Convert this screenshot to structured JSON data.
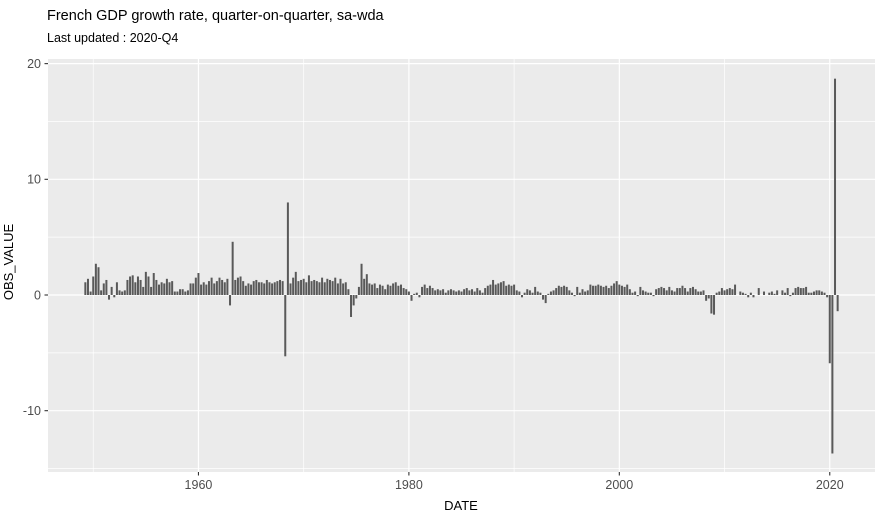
{
  "chart_data": {
    "type": "bar",
    "title": "French GDP growth rate, quarter-on-quarter, sa-wda",
    "subtitle": "Last updated : 2020-Q4",
    "xlabel": "DATE",
    "ylabel": "OBS_VALUE",
    "series_name": "OBS_VALUE",
    "frequency": "quarterly",
    "series_start": "1949-Q2",
    "series_end": "2020-Q4",
    "x_tick_labels": [
      "1960",
      "1980",
      "2000",
      "2020"
    ],
    "x_tick_values": [
      1960,
      1980,
      2000,
      2020
    ],
    "y_tick_labels": [
      "20",
      "10",
      "0",
      "-10"
    ],
    "y_tick_values": [
      20,
      10,
      0,
      -10
    ],
    "xlim": [
      1945.7,
      2024.3
    ],
    "ylim": [
      -15.3,
      20.4
    ],
    "grid": true,
    "legend": "none",
    "colors": {
      "bar": "#595959",
      "panel_bg": "#ebebeb",
      "gridline": "#ffffff",
      "tick_mark": "#333333",
      "tick_text": "#4d4d4d",
      "text": "#000000"
    },
    "values": [
      1.1,
      1.4,
      0.3,
      1.6,
      2.7,
      2.4,
      0.4,
      1.0,
      1.3,
      -0.4,
      0.7,
      -0.2,
      1.1,
      0.4,
      0.3,
      0.4,
      1.3,
      1.6,
      1.7,
      1.1,
      1.6,
      1.3,
      0.7,
      2.0,
      1.6,
      0.7,
      1.9,
      1.3,
      0.9,
      1.1,
      1.0,
      1.4,
      1.1,
      1.2,
      0.3,
      0.3,
      0.5,
      0.5,
      0.3,
      0.4,
      1.0,
      1.0,
      1.5,
      1.9,
      0.9,
      1.1,
      0.9,
      1.2,
      1.5,
      1.0,
      1.2,
      1.5,
      1.3,
      1.1,
      1.4,
      -0.9,
      4.6,
      1.3,
      1.5,
      1.6,
      1.2,
      0.8,
      1.0,
      0.9,
      1.2,
      1.3,
      1.1,
      1.1,
      1.0,
      1.3,
      1.1,
      1.0,
      1.1,
      1.2,
      1.3,
      1.2,
      -5.3,
      8.0,
      1.0,
      1.5,
      2.0,
      1.2,
      1.3,
      1.4,
      1.1,
      1.7,
      1.2,
      1.3,
      1.2,
      1.1,
      1.5,
      1.1,
      1.4,
      1.3,
      1.2,
      1.5,
      1.0,
      1.4,
      1.0,
      1.1,
      0.5,
      -1.9,
      -0.9,
      -0.3,
      0.7,
      2.7,
      1.4,
      1.8,
      1.0,
      0.9,
      1.0,
      0.6,
      0.9,
      0.8,
      0.5,
      0.9,
      0.8,
      1.0,
      1.1,
      0.8,
      0.9,
      0.6,
      0.5,
      0.3,
      -0.5,
      0.1,
      0.2,
      -0.2,
      0.7,
      0.9,
      0.6,
      0.8,
      0.6,
      0.4,
      0.5,
      0.4,
      0.5,
      0.2,
      0.4,
      0.5,
      0.4,
      0.3,
      0.4,
      0.3,
      0.5,
      0.6,
      0.4,
      0.5,
      0.3,
      0.6,
      0.4,
      0.2,
      0.6,
      0.8,
      0.9,
      1.3,
      0.9,
      1.0,
      1.1,
      1.2,
      0.8,
      0.9,
      0.8,
      0.9,
      0.4,
      0.3,
      -0.2,
      0.2,
      0.5,
      0.4,
      0.2,
      0.7,
      0.3,
      0.2,
      -0.4,
      -0.7,
      0.1,
      0.3,
      0.4,
      0.6,
      0.8,
      0.7,
      0.8,
      0.7,
      0.4,
      0.2,
      -0.1,
      0.7,
      0.2,
      0.5,
      0.3,
      0.4,
      0.9,
      0.8,
      0.8,
      0.9,
      0.8,
      0.7,
      0.8,
      0.6,
      0.8,
      1.0,
      1.2,
      0.9,
      0.8,
      0.7,
      0.9,
      0.5,
      0.2,
      0.3,
      -0.1,
      0.7,
      0.4,
      0.3,
      0.2,
      0.2,
      -0.1,
      0.5,
      0.6,
      0.7,
      0.6,
      0.4,
      0.7,
      0.4,
      0.3,
      0.6,
      0.6,
      0.8,
      0.6,
      0.3,
      0.6,
      0.7,
      0.5,
      0.3,
      0.3,
      0.4,
      -0.5,
      -0.3,
      -1.6,
      -1.7,
      0.2,
      0.3,
      0.6,
      0.4,
      0.5,
      0.6,
      0.5,
      0.9,
      0.0,
      0.3,
      0.2,
      0.1,
      -0.2,
      0.2,
      -0.2,
      0.0,
      0.6,
      0.0,
      0.3,
      0.0,
      0.2,
      0.3,
      0.1,
      0.4,
      0.0,
      0.4,
      0.2,
      0.6,
      -0.1,
      0.2,
      0.6,
      0.7,
      0.6,
      0.6,
      0.7,
      0.2,
      0.2,
      0.3,
      0.4,
      0.4,
      0.3,
      0.2,
      -0.2,
      -5.9,
      -13.7,
      18.7,
      -1.4
    ]
  }
}
